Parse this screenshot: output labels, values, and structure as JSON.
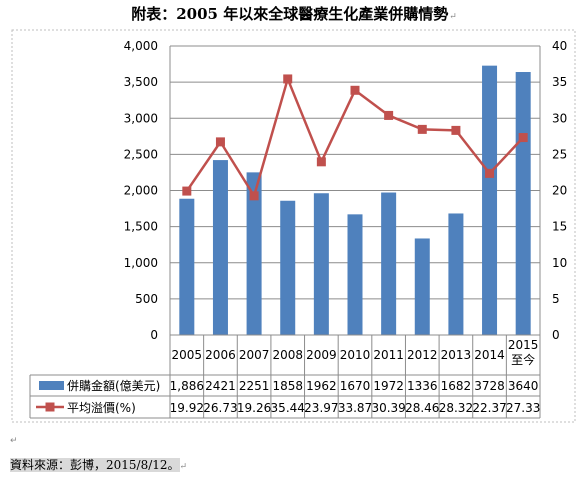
{
  "page": {
    "title": "附表：2005 年以來全球醫療生化產業併購情勢",
    "footer_label": "資料來源：彭博，2015/8/12。",
    "paragraph_mark": "↵"
  },
  "chart_data": {
    "type": "bar",
    "categories": [
      "2005",
      "2006",
      "2007",
      "2008",
      "2009",
      "2010",
      "2011",
      "2012",
      "2013",
      "2014",
      "2015至今"
    ],
    "category_lines": [
      [
        "2005"
      ],
      [
        "2006"
      ],
      [
        "2007"
      ],
      [
        "2008"
      ],
      [
        "2009"
      ],
      [
        "2010"
      ],
      [
        "2011"
      ],
      [
        "2012"
      ],
      [
        "2013"
      ],
      [
        "2014"
      ],
      [
        "2015",
        "至今"
      ]
    ],
    "series": [
      {
        "name": "併購金額(億美元)",
        "type": "bar",
        "axis": "left",
        "color": "#4f81bd",
        "values": [
          1886,
          2421,
          2251,
          1858,
          1962,
          1670,
          1972,
          1336,
          1682,
          3728,
          3640
        ],
        "table_labels": [
          "1,886",
          "2421",
          "2251",
          "1858",
          "1962",
          "1670",
          "1972",
          "1336",
          "1682",
          "3728",
          "3640"
        ]
      },
      {
        "name": "平均溢價(%)",
        "type": "line",
        "axis": "right",
        "color": "#c0504d",
        "marker": "square",
        "values": [
          19.92,
          26.73,
          19.26,
          35.44,
          23.97,
          33.87,
          30.39,
          28.46,
          28.32,
          22.37,
          27.33
        ],
        "table_labels": [
          "19.92",
          "26.73",
          "19.26",
          "35.44",
          "23.97",
          "33.87",
          "30.39",
          "28.46",
          "28.32",
          "22.37",
          "27.33"
        ]
      }
    ],
    "y_left": {
      "range": [
        0,
        4000
      ],
      "ticks": [
        0,
        500,
        1000,
        1500,
        2000,
        2500,
        3000,
        3500,
        4000
      ],
      "tick_labels": [
        "0",
        "500",
        "1,000",
        "1,500",
        "2,000",
        "2,500",
        "3,000",
        "3,500",
        "4,000"
      ]
    },
    "y_right": {
      "range": [
        0,
        40
      ],
      "ticks": [
        0,
        5,
        10,
        15,
        20,
        25,
        30,
        35,
        40
      ],
      "tick_labels": [
        "0",
        "5",
        "10",
        "15",
        "20",
        "25",
        "30",
        "35",
        "40"
      ]
    },
    "gridlines": true,
    "legend": "data-table"
  }
}
